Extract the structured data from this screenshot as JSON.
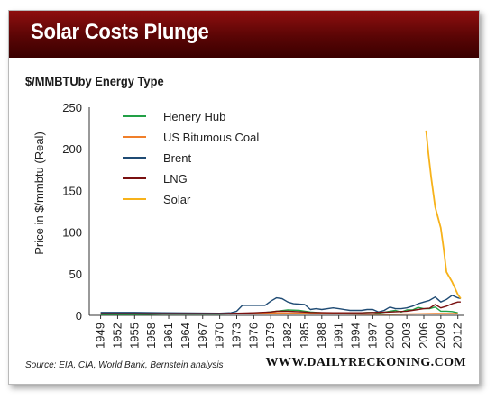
{
  "header": {
    "title": "Solar Costs Plunge",
    "subtitle": "$/MMBTUby Energy Type"
  },
  "footer": {
    "source": "Source: EIA, CIA, World Bank, Bernstein analysis",
    "site": "WWW.DAILYRECKONING.COM"
  },
  "colors": {
    "banner": "#6e0a0a",
    "henery_hub": "#22a046",
    "coal": "#f07f2a",
    "brent": "#1f4b74",
    "lng": "#7a1010",
    "solar": "#f7b21a"
  },
  "chart_data": {
    "type": "line",
    "title": "$/MMBTUby Energy Type",
    "xlabel": "",
    "ylabel": "Price in $/mmbtu (Real)",
    "xlim": [
      1947,
      2013
    ],
    "ylim": [
      0,
      250
    ],
    "yticks": [
      0,
      50,
      100,
      150,
      200,
      250
    ],
    "xticks": [
      1949,
      1952,
      1955,
      1958,
      1961,
      1964,
      1967,
      1970,
      1973,
      1976,
      1979,
      1982,
      1985,
      1988,
      1991,
      1994,
      1997,
      2000,
      2003,
      2006,
      2009,
      2012
    ],
    "grid": false,
    "legend_position": "top-left",
    "series": [
      {
        "name": "Henery Hub",
        "color": "#22a046",
        "points": [
          [
            1949,
            1
          ],
          [
            1955,
            1
          ],
          [
            1960,
            1.5
          ],
          [
            1965,
            1.5
          ],
          [
            1970,
            1.5
          ],
          [
            1973,
            2
          ],
          [
            1975,
            2.5
          ],
          [
            1978,
            3.5
          ],
          [
            1980,
            5
          ],
          [
            1982,
            6.5
          ],
          [
            1984,
            6
          ],
          [
            1986,
            4
          ],
          [
            1988,
            3
          ],
          [
            1990,
            3
          ],
          [
            1992,
            3
          ],
          [
            1994,
            2.5
          ],
          [
            1996,
            3.5
          ],
          [
            1997,
            3.5
          ],
          [
            1998,
            2.5
          ],
          [
            2000,
            5
          ],
          [
            2001,
            6
          ],
          [
            2002,
            4
          ],
          [
            2003,
            6.5
          ],
          [
            2004,
            6.5
          ],
          [
            2005,
            9.5
          ],
          [
            2006,
            8
          ],
          [
            2007,
            8
          ],
          [
            2008,
            10
          ],
          [
            2009,
            5
          ],
          [
            2010,
            5
          ],
          [
            2011,
            4.5
          ],
          [
            2012,
            3
          ]
        ]
      },
      {
        "name": "US Bitumous Coal",
        "color": "#f07f2a",
        "points": [
          [
            1949,
            2
          ],
          [
            1960,
            2
          ],
          [
            1970,
            1.8
          ],
          [
            1975,
            2.5
          ],
          [
            1980,
            3
          ],
          [
            1985,
            2.5
          ],
          [
            1990,
            2
          ],
          [
            1995,
            1.6
          ],
          [
            2000,
            1.4
          ],
          [
            2005,
            1.8
          ],
          [
            2008,
            2.3
          ],
          [
            2010,
            2.3
          ],
          [
            2012,
            2.3
          ]
        ]
      },
      {
        "name": "Brent",
        "color": "#1f4b74",
        "points": [
          [
            1949,
            3.5
          ],
          [
            1955,
            3.5
          ],
          [
            1960,
            3
          ],
          [
            1965,
            2.8
          ],
          [
            1970,
            2.5
          ],
          [
            1972,
            3
          ],
          [
            1973,
            5
          ],
          [
            1974,
            12
          ],
          [
            1976,
            12
          ],
          [
            1978,
            12
          ],
          [
            1979,
            17
          ],
          [
            1980,
            21
          ],
          [
            1981,
            20
          ],
          [
            1982,
            16
          ],
          [
            1983,
            14
          ],
          [
            1985,
            13
          ],
          [
            1986,
            7
          ],
          [
            1987,
            8
          ],
          [
            1988,
            7
          ],
          [
            1990,
            9
          ],
          [
            1991,
            8
          ],
          [
            1993,
            6
          ],
          [
            1995,
            6
          ],
          [
            1996,
            7
          ],
          [
            1997,
            7
          ],
          [
            1998,
            4
          ],
          [
            1999,
            6
          ],
          [
            2000,
            10
          ],
          [
            2001,
            8
          ],
          [
            2002,
            8
          ],
          [
            2003,
            9
          ],
          [
            2004,
            11
          ],
          [
            2005,
            14
          ],
          [
            2006,
            16
          ],
          [
            2007,
            18
          ],
          [
            2008,
            22
          ],
          [
            2009,
            16
          ],
          [
            2010,
            19
          ],
          [
            2011,
            24
          ],
          [
            2012,
            21
          ],
          [
            2012.5,
            20
          ]
        ]
      },
      {
        "name": "LNG",
        "color": "#7a1010",
        "points": [
          [
            1949,
            2
          ],
          [
            1960,
            2
          ],
          [
            1970,
            2
          ],
          [
            1973,
            2.5
          ],
          [
            1976,
            3
          ],
          [
            1979,
            4
          ],
          [
            1980,
            5
          ],
          [
            1982,
            5
          ],
          [
            1985,
            4
          ],
          [
            1986,
            3.5
          ],
          [
            1990,
            3
          ],
          [
            1995,
            3
          ],
          [
            2000,
            4
          ],
          [
            2003,
            5
          ],
          [
            2005,
            7
          ],
          [
            2006,
            8
          ],
          [
            2007,
            8.5
          ],
          [
            2008,
            13
          ],
          [
            2009,
            9
          ],
          [
            2010,
            11
          ],
          [
            2011,
            14
          ],
          [
            2012,
            16
          ],
          [
            2012.5,
            16
          ]
        ]
      },
      {
        "name": "Solar",
        "color": "#f7b21a",
        "points": [
          [
            2006.4,
            222
          ],
          [
            2006.8,
            195
          ],
          [
            2007.3,
            165
          ],
          [
            2008,
            130
          ],
          [
            2009,
            105
          ],
          [
            2009.5,
            80
          ],
          [
            2010,
            52
          ],
          [
            2011,
            40
          ],
          [
            2012,
            25
          ],
          [
            2012.5,
            20
          ]
        ]
      }
    ]
  }
}
